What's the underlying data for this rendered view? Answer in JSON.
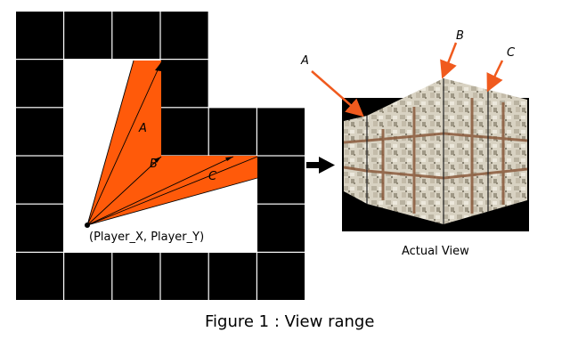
{
  "map": {
    "ray_labels": [
      "A",
      "B",
      "C"
    ],
    "player_label": "(Player_X, Player_Y)",
    "wall_color": "#000000",
    "fov_color": "#ff5a0a"
  },
  "view": {
    "caption": "Actual View",
    "callouts": [
      "A",
      "B",
      "C"
    ],
    "arrow_color": "#f05a1e"
  },
  "figure": {
    "caption": "Figure 1 : View range"
  }
}
